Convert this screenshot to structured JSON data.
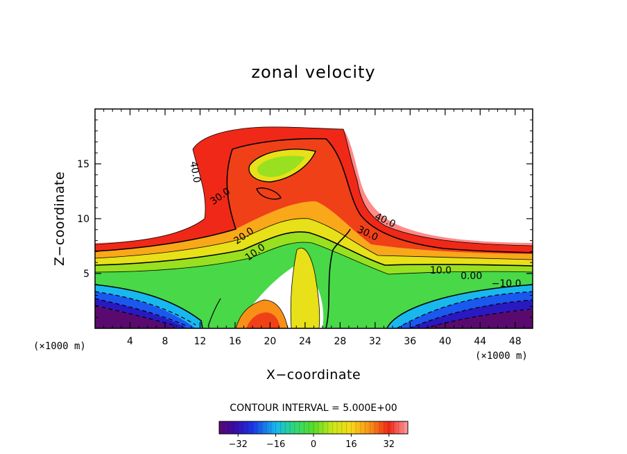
{
  "chart_data": {
    "type": "contour",
    "title": "zonal velocity",
    "xlabel": "X−coordinate",
    "ylabel": "Z−coordinate",
    "x_unit_left": "(×1000 m)",
    "x_unit_right": "(×1000 m)",
    "xlim": [
      0,
      50
    ],
    "ylim": [
      0,
      20
    ],
    "x_ticks": [
      4,
      8,
      12,
      16,
      20,
      24,
      28,
      32,
      36,
      40,
      44,
      48
    ],
    "y_ticks": [
      5,
      10,
      15
    ],
    "contour_interval_text": "CONTOUR INTERVAL = 5.000E+00",
    "contour_interval": 5,
    "contour_labels": [
      {
        "text": "40.0",
        "x": 11.1,
        "y": 14.2
      },
      {
        "text": "30.0",
        "x": 14.5,
        "y": 11.8
      },
      {
        "text": "20.0",
        "x": 17.2,
        "y": 8.2
      },
      {
        "text": "10.0",
        "x": 18.5,
        "y": 6.7
      },
      {
        "text": "40.0",
        "x": 33.0,
        "y": 9.6
      },
      {
        "text": "30.0",
        "x": 31.0,
        "y": 8.4
      },
      {
        "text": "10.0",
        "x": 39.5,
        "y": 5.0
      },
      {
        "text": "0.00",
        "x": 43.0,
        "y": 4.5
      },
      {
        "text": "−10.0",
        "x": 47.0,
        "y": 3.8
      }
    ],
    "colorbar": {
      "min": -40,
      "max": 40,
      "ticks": [
        -32,
        -16,
        0,
        16,
        32
      ],
      "tick_labels": [
        "−32",
        "−16",
        "0",
        "16",
        "32"
      ]
    },
    "field_description": {
      "background_levels": [
        {
          "z": 0.0,
          "u": -38
        },
        {
          "z": 1.0,
          "u": -30
        },
        {
          "z": 2.0,
          "u": -22
        },
        {
          "z": 3.0,
          "u": -12
        },
        {
          "z": 4.0,
          "u": -2
        },
        {
          "z": 5.0,
          "u": 8
        },
        {
          "z": 6.0,
          "u": 20
        },
        {
          "z": 7.0,
          "u": 32
        },
        {
          "z": 7.5,
          "u": 40
        }
      ],
      "jet_core": {
        "x": 21.5,
        "z": 14.8,
        "u": 12
      }
    }
  }
}
